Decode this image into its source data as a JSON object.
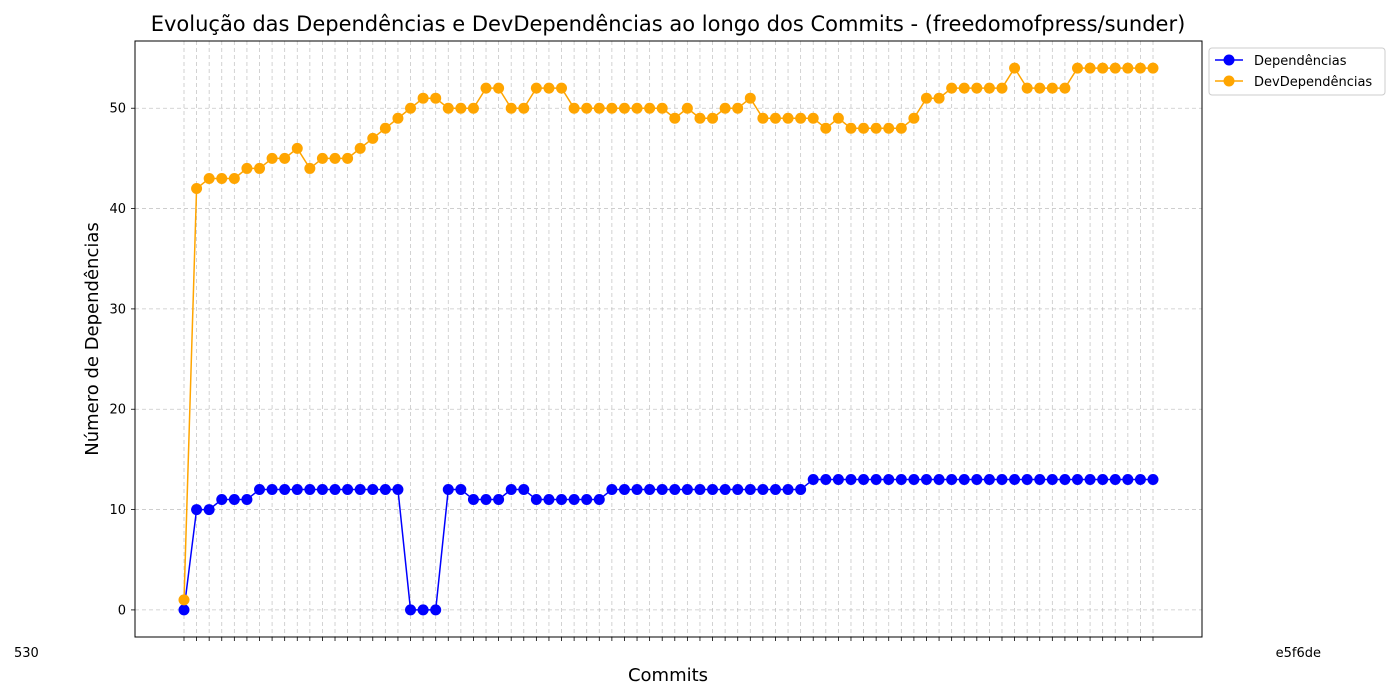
{
  "chart_data": {
    "type": "line",
    "title": "Evolução das Dependências e DevDependências ao longo dos Commits - (freedomofpress/sunder)",
    "xlabel": "Commits",
    "ylabel": "Número de Dependências",
    "ylim": [
      -2.7,
      56.7
    ],
    "yticks": [
      0,
      10,
      20,
      30,
      40,
      50
    ],
    "grid": true,
    "legend_placement": "outside top-right",
    "x_tick_labels_visible": [
      "530",
      "e5f6de"
    ],
    "series": [
      {
        "name": "Dependências",
        "color": "#0000ff",
        "values": [
          0,
          10,
          10,
          11,
          11,
          11,
          12,
          12,
          12,
          12,
          12,
          12,
          12,
          12,
          12,
          12,
          12,
          12,
          0,
          0,
          0,
          12,
          12,
          11,
          11,
          11,
          12,
          12,
          11,
          11,
          11,
          11,
          11,
          11,
          12,
          12,
          12,
          12,
          12,
          12,
          12,
          12,
          12,
          12,
          12,
          12,
          12,
          12,
          12,
          12,
          13,
          13,
          13,
          13,
          13,
          13,
          13,
          13,
          13,
          13,
          13,
          13,
          13,
          13,
          13,
          13,
          13,
          13,
          13,
          13,
          13,
          13,
          13,
          13,
          13,
          13,
          13,
          13
        ]
      },
      {
        "name": "DevDependências",
        "color": "#ffa500",
        "values": [
          1,
          42,
          43,
          43,
          43,
          44,
          44,
          45,
          45,
          46,
          44,
          45,
          45,
          45,
          46,
          47,
          48,
          49,
          50,
          51,
          51,
          50,
          50,
          50,
          52,
          52,
          50,
          50,
          52,
          52,
          52,
          50,
          50,
          50,
          50,
          50,
          50,
          50,
          50,
          49,
          50,
          49,
          49,
          50,
          50,
          51,
          49,
          49,
          49,
          49,
          49,
          48,
          49,
          48,
          48,
          48,
          48,
          48,
          49,
          51,
          51,
          52,
          52,
          52,
          52,
          52,
          54,
          52,
          52,
          52,
          52,
          54,
          54,
          54,
          54,
          54,
          54,
          54
        ]
      }
    ]
  }
}
